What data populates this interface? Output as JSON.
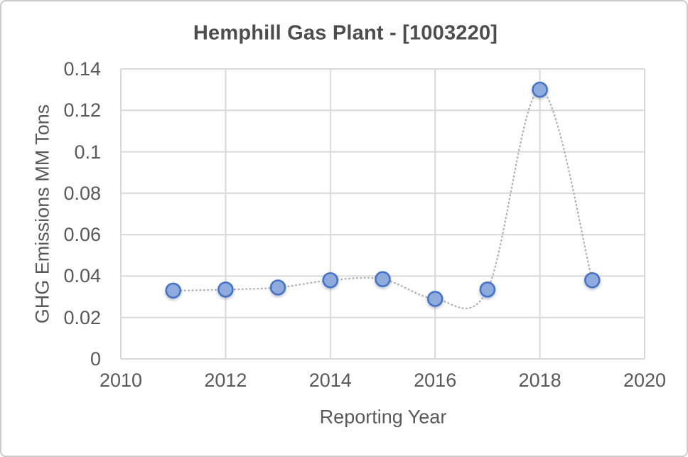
{
  "chart_data": {
    "type": "line",
    "title": "Hemphill Gas Plant - [1003220]",
    "xlabel": "Reporting Year",
    "ylabel": "GHG Emissions MM Tons",
    "series": [
      {
        "name": "GHG Emissions",
        "x": [
          2011,
          2012,
          2013,
          2014,
          2015,
          2016,
          2017,
          2018,
          2019
        ],
        "values": [
          0.033,
          0.0335,
          0.0345,
          0.038,
          0.0385,
          0.029,
          0.0335,
          0.13,
          0.038
        ]
      }
    ],
    "xlim": [
      2010,
      2020
    ],
    "ylim": [
      0,
      0.14
    ],
    "xticks": [
      "2010",
      "2012",
      "2014",
      "2016",
      "2018",
      "2020"
    ],
    "yticks": [
      "0",
      "0.02",
      "0.04",
      "0.06",
      "0.08",
      "0.1",
      "0.12",
      "0.14"
    ],
    "grid": true,
    "legend": "none",
    "line_style": "dotted-smooth",
    "colors": {
      "marker_fill": "#8FAADC",
      "marker_border": "#4472C4",
      "line": "#A6A6A6",
      "gridline": "#D9D9D9",
      "text": "#595959",
      "title_text": "#4D4D4D",
      "canvas_border": "#CBCBCB",
      "background": "#FFFFFF"
    }
  }
}
